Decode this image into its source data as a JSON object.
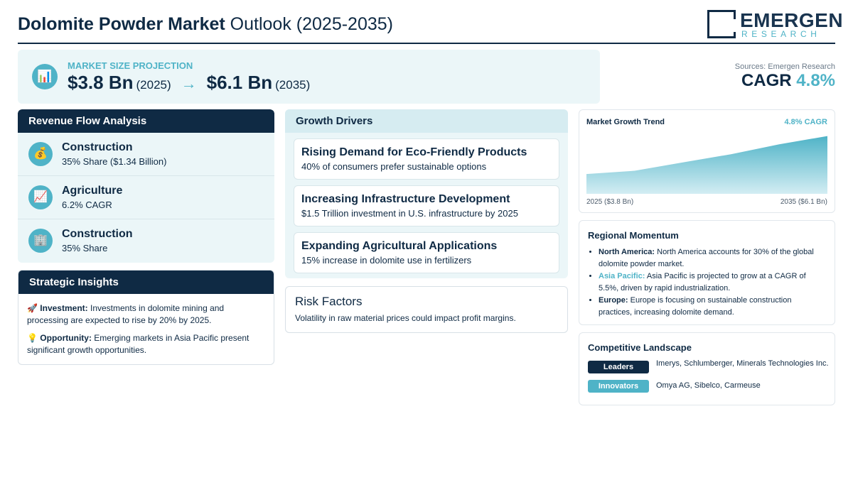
{
  "header": {
    "title_bold": "Dolomite Powder Market",
    "title_rest": " Outlook (2025-2035)",
    "logo_main": "EMERGEN",
    "logo_sub": "RESEARCH"
  },
  "projection": {
    "label": "MARKET SIZE PROJECTION",
    "start_value": "$3.8 Bn",
    "start_year": "(2025)",
    "arrow": "→",
    "end_value": "$6.1 Bn",
    "end_year": "(2035)",
    "icon": "bar-chart-icon"
  },
  "source": "Sources: Emergen Research",
  "cagr": {
    "label": "CAGR",
    "value": "4.8%"
  },
  "revenue_flow": {
    "title": "Revenue Flow Analysis",
    "items": [
      {
        "icon": "money-bag-icon",
        "glyph": "💰",
        "name": "Construction",
        "detail": "35% Share ($1.34 Billion)"
      },
      {
        "icon": "trend-up-icon",
        "glyph": "📈",
        "name": "Agriculture",
        "detail": "6.2% CAGR"
      },
      {
        "icon": "building-icon",
        "glyph": "🏢",
        "name": "Construction",
        "detail": "35% Share"
      }
    ]
  },
  "strategic_insights": {
    "title": "Strategic Insights",
    "items": [
      {
        "icon": "rocket-icon",
        "glyph": "🚀",
        "label": "Investment:",
        "text": "Investments in dolomite mining and processing are expected to rise by 20% by 2025."
      },
      {
        "icon": "lightbulb-icon",
        "glyph": "💡",
        "label": "Opportunity:",
        "text": "Emerging markets in Asia Pacific present significant growth opportunities."
      }
    ]
  },
  "growth_drivers": {
    "title": "Growth Drivers",
    "items": [
      {
        "title": "Rising Demand for Eco-Friendly Products",
        "detail": "40% of consumers prefer sustainable options"
      },
      {
        "title": "Increasing Infrastructure Development",
        "detail": "$1.5 Trillion investment in U.S. infrastructure by 2025"
      },
      {
        "title": "Expanding Agricultural Applications",
        "detail": "15% increase in dolomite use in fertilizers"
      }
    ]
  },
  "risk_factors": {
    "title": "Risk Factors",
    "text": "Volatility in raw material prices could impact profit margins."
  },
  "chart_data": {
    "type": "area",
    "title": "Market Growth Trend",
    "annotation": "4.8% CAGR",
    "x": [
      2025,
      2027,
      2029,
      2031,
      2033,
      2035
    ],
    "values": [
      3.8,
      4.0,
      4.5,
      5.0,
      5.6,
      6.1
    ],
    "x_start_label": "2025 ($3.8 Bn)",
    "x_end_label": "2035 ($6.1 Bn)",
    "ylim": [
      2.6,
      6.3
    ],
    "grid": false,
    "colors": {
      "top": "#4fb3c7",
      "bottom": "#d3edf3"
    }
  },
  "regional_momentum": {
    "title": "Regional Momentum",
    "items": [
      {
        "region": "North America:",
        "text": " North America accounts for 30% of the global dolomite powder market.",
        "accent": false
      },
      {
        "region": "Asia Pacific:",
        "text": " Asia Pacific is projected to grow at a CAGR of 5.5%, driven by rapid industrialization.",
        "accent": true
      },
      {
        "region": "Europe:",
        "text": " Europe is focusing on sustainable construction practices, increasing dolomite demand.",
        "accent": false
      }
    ]
  },
  "competitive_landscape": {
    "title": "Competitive Landscape",
    "rows": [
      {
        "badge": "Leaders",
        "text": "Imerys, Schlumberger, Minerals Technologies Inc."
      },
      {
        "badge": "Innovators",
        "text": "Omya AG, Sibelco, Carmeuse"
      }
    ]
  },
  "colors": {
    "navy": "#0f2a44",
    "teal": "#4fb3c7",
    "panel": "#ebf6f8"
  }
}
